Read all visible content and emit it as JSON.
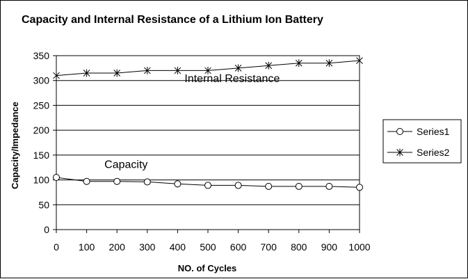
{
  "chart_data": {
    "type": "line",
    "title": "Capacity and Internal Resistance of a Lithium Ion Battery",
    "xlabel": "NO. of Cycles",
    "ylabel": "Capacity/Impedance",
    "x": [
      0,
      100,
      200,
      300,
      400,
      500,
      600,
      700,
      800,
      900,
      1000
    ],
    "xlim": [
      0,
      1000
    ],
    "ylim": [
      0,
      350
    ],
    "x_ticks": [
      "0",
      "100",
      "200",
      "300",
      "400",
      "500",
      "600",
      "700",
      "800",
      "900",
      "1000"
    ],
    "y_ticks": [
      "0",
      "50",
      "100",
      "150",
      "200",
      "250",
      "300",
      "350"
    ],
    "grid": "horizontal",
    "legend_position": "right",
    "series": [
      {
        "name": "Series1",
        "marker": "circle",
        "values": [
          105,
          97,
          97,
          96,
          92,
          89,
          89,
          87,
          87,
          87,
          85
        ]
      },
      {
        "name": "Series2",
        "marker": "star",
        "values": [
          310,
          315,
          315,
          320,
          320,
          320,
          325,
          330,
          335,
          335,
          340
        ]
      }
    ],
    "annotations": [
      {
        "text": "Internal Resistance",
        "x": 580,
        "y": 297
      },
      {
        "text": "Capacity",
        "x": 230,
        "y": 124
      }
    ],
    "colors": {
      "line": "#000000",
      "grid": "#000000",
      "background": "#ffffff"
    }
  }
}
